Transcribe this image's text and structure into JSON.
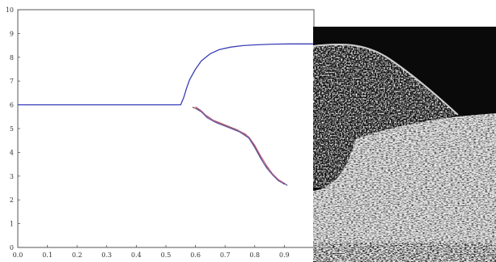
{
  "chart_data": {
    "type": "line",
    "title": "",
    "xlabel": "",
    "ylabel": "",
    "xlim": [
      0,
      1
    ],
    "ylim": [
      0,
      10
    ],
    "grid": false,
    "x_ticks": [
      {
        "value": 0.0,
        "label": "0.0"
      },
      {
        "value": 0.1,
        "label": "0.1"
      },
      {
        "value": 0.2,
        "label": "0.2"
      },
      {
        "value": 0.3,
        "label": "0.3"
      },
      {
        "value": 0.4,
        "label": "0.4"
      },
      {
        "value": 0.5,
        "label": "0.5"
      },
      {
        "value": 0.6,
        "label": "0.6"
      },
      {
        "value": 0.7,
        "label": "0.7"
      },
      {
        "value": 0.8,
        "label": "0.8"
      },
      {
        "value": 0.9,
        "label": "0.9"
      }
    ],
    "y_ticks": [
      {
        "value": 0,
        "label": "0"
      },
      {
        "value": 1,
        "label": "1"
      },
      {
        "value": 2,
        "label": "2"
      },
      {
        "value": 3,
        "label": "3"
      },
      {
        "value": 4,
        "label": "4"
      },
      {
        "value": 5,
        "label": "5"
      },
      {
        "value": 6,
        "label": "6"
      },
      {
        "value": 7,
        "label": "7"
      },
      {
        "value": 8,
        "label": "8"
      },
      {
        "value": 9,
        "label": "9"
      },
      {
        "value": 10,
        "label": "10"
      }
    ],
    "series": [
      {
        "color": "#3b3fb8",
        "points": [
          [
            0.0,
            6.0
          ],
          [
            0.55,
            6.0
          ],
          [
            0.56,
            6.3
          ],
          [
            0.57,
            6.7
          ],
          [
            0.58,
            7.05
          ],
          [
            0.6,
            7.5
          ],
          [
            0.62,
            7.85
          ],
          [
            0.65,
            8.15
          ],
          [
            0.68,
            8.32
          ],
          [
            0.72,
            8.43
          ],
          [
            0.76,
            8.49
          ],
          [
            0.8,
            8.52
          ],
          [
            0.86,
            8.55
          ],
          [
            0.92,
            8.56
          ],
          [
            1.0,
            8.56
          ]
        ]
      },
      {
        "color": "#7a3030",
        "points": [
          [
            0.59,
            5.9
          ],
          [
            0.61,
            5.8
          ],
          [
            0.63,
            5.6
          ],
          [
            0.66,
            5.35
          ],
          [
            0.7,
            5.15
          ],
          [
            0.74,
            4.95
          ],
          [
            0.77,
            4.75
          ],
          [
            0.79,
            4.45
          ],
          [
            0.81,
            4.0
          ],
          [
            0.83,
            3.55
          ],
          [
            0.85,
            3.2
          ],
          [
            0.87,
            2.95
          ],
          [
            0.89,
            2.75
          ],
          [
            0.9,
            2.65
          ]
        ]
      },
      {
        "color": "#c05a7a",
        "points": [
          [
            0.6,
            5.92
          ],
          [
            0.62,
            5.75
          ],
          [
            0.64,
            5.5
          ],
          [
            0.67,
            5.28
          ],
          [
            0.71,
            5.08
          ],
          [
            0.75,
            4.88
          ],
          [
            0.78,
            4.65
          ],
          [
            0.8,
            4.3
          ],
          [
            0.82,
            3.85
          ],
          [
            0.84,
            3.45
          ],
          [
            0.86,
            3.1
          ],
          [
            0.88,
            2.85
          ],
          [
            0.9,
            2.7
          ],
          [
            0.91,
            2.6
          ]
        ]
      },
      {
        "color": "#5a5aa8",
        "points": [
          [
            0.6,
            5.85
          ],
          [
            0.62,
            5.7
          ],
          [
            0.64,
            5.45
          ],
          [
            0.67,
            5.25
          ],
          [
            0.71,
            5.05
          ],
          [
            0.75,
            4.85
          ],
          [
            0.78,
            4.6
          ],
          [
            0.8,
            4.2
          ],
          [
            0.82,
            3.75
          ],
          [
            0.84,
            3.35
          ],
          [
            0.86,
            3.05
          ],
          [
            0.88,
            2.8
          ],
          [
            0.9,
            2.68
          ],
          [
            0.91,
            2.62
          ]
        ]
      }
    ]
  },
  "overlay": {
    "description_free": true,
    "colors": {
      "dark": "#0a0a0a",
      "light": "#e8e8e8",
      "mid": "#8a8a8a"
    }
  }
}
